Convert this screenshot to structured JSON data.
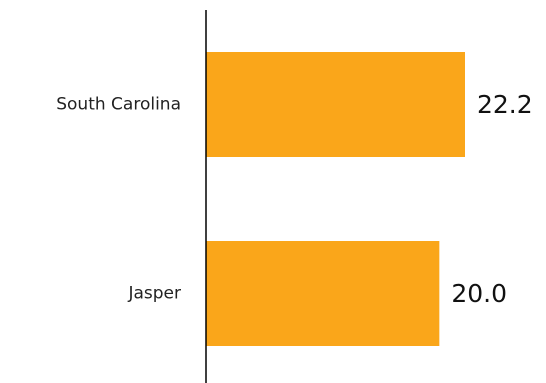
{
  "chart_data": {
    "type": "bar",
    "orientation": "horizontal",
    "categories": [
      "South Carolina",
      "Jasper"
    ],
    "values": [
      22.2,
      20.0
    ],
    "value_labels": [
      "22.2",
      "20.0"
    ],
    "title": "",
    "xlabel": "",
    "ylabel": "",
    "xlim": [
      0,
      30
    ],
    "grid": false,
    "legend": "none",
    "bar_color": "#FAA61A",
    "axis_color": "#000000"
  }
}
